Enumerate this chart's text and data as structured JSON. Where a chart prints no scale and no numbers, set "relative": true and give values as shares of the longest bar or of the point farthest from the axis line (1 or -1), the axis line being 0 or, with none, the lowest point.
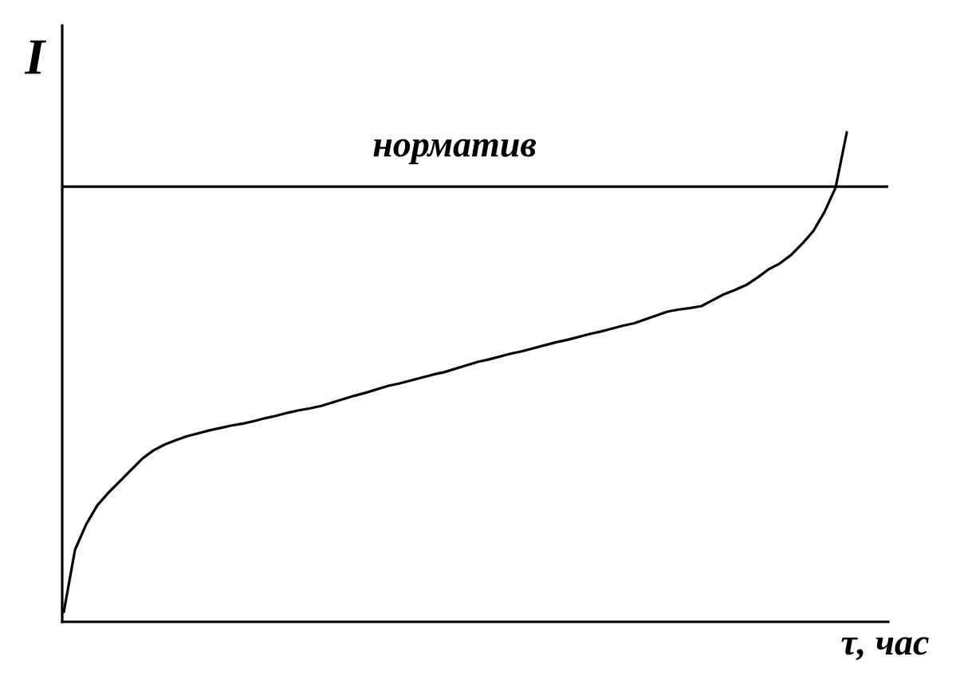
{
  "chart_data": {
    "type": "line",
    "relative": true,
    "xlabel": "τ, час",
    "ylabel": "I",
    "marker": "none",
    "line_style": "solid",
    "categories": [
      null,
      null,
      null,
      null,
      null,
      null,
      null,
      null,
      null,
      null,
      null,
      null,
      null,
      null,
      null,
      null,
      null,
      null,
      null,
      null,
      null,
      null,
      null,
      null,
      null,
      null,
      null,
      null,
      null,
      null,
      null,
      null,
      null,
      null,
      null,
      null,
      null,
      null,
      null,
      null,
      null,
      null,
      null,
      null,
      null,
      null,
      null,
      null,
      null,
      null,
      null,
      null,
      null,
      null,
      null,
      null,
      null,
      null,
      null,
      null,
      null,
      null,
      null,
      null,
      null,
      null,
      null,
      null,
      null,
      null,
      null
    ],
    "series": [
      {
        "color": "#000000",
        "values": [
          0.02,
          0.147,
          0.199,
          0.238,
          0.264,
          0.287,
          0.31,
          0.333,
          0.35,
          0.362,
          0.371,
          0.379,
          0.385,
          0.391,
          0.396,
          0.401,
          0.405,
          0.41,
          0.416,
          0.421,
          0.427,
          0.432,
          0.436,
          0.441,
          0.448,
          0.455,
          0.462,
          0.468,
          0.475,
          0.482,
          0.487,
          0.493,
          0.499,
          0.505,
          0.51,
          0.517,
          0.524,
          0.531,
          0.536,
          0.542,
          0.548,
          0.553,
          0.559,
          0.565,
          0.571,
          0.576,
          0.582,
          0.588,
          0.593,
          0.599,
          0.605,
          0.61,
          0.618,
          0.626,
          0.634,
          0.638,
          0.641,
          0.645,
          0.657,
          0.669,
          0.678,
          0.688,
          0.703,
          0.72,
          0.732,
          0.749,
          0.772,
          0.798,
          0.837,
          0.887,
          1
        ]
      }
    ],
    "ref_lines": [
      {
        "axis": "y",
        "value": 0.889,
        "label": "норматив",
        "color": "#000000"
      }
    ]
  }
}
